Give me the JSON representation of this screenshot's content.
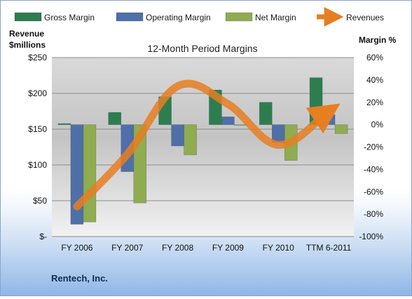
{
  "chart_data": {
    "type": "bar",
    "title": "12-Month Period Margins",
    "categories": [
      "FY 2006",
      "FY 2007",
      "FY 2008",
      "FY 2009",
      "FY 2010",
      "TTM 6-2011"
    ],
    "series": [
      {
        "name": "Gross Margin",
        "axis": "right",
        "kind": "bar",
        "color": "#2e7d4f",
        "values": [
          1,
          11,
          25,
          31,
          20,
          42
        ]
      },
      {
        "name": "Operating Margin",
        "axis": "right",
        "kind": "bar",
        "color": "#4f6fa8",
        "values": [
          -89,
          -42,
          -19,
          7,
          -16,
          9
        ]
      },
      {
        "name": "Net Margin",
        "axis": "right",
        "kind": "bar",
        "color": "#8fac50",
        "values": [
          -87,
          -70,
          -27,
          0,
          -32,
          -8
        ]
      },
      {
        "name": "Revenues",
        "axis": "left",
        "kind": "line",
        "color": "#e67e22",
        "values": [
          42,
          115,
          210,
          185,
          128,
          175
        ]
      }
    ],
    "left_axis": {
      "title_lines": [
        "Revenue",
        "$millions"
      ],
      "ticks": [
        {
          "value": 0,
          "label": "$-"
        },
        {
          "value": 50,
          "label": "$50"
        },
        {
          "value": 100,
          "label": "$100"
        },
        {
          "value": 150,
          "label": "$150"
        },
        {
          "value": 200,
          "label": "$200"
        },
        {
          "value": 250,
          "label": "$250"
        }
      ],
      "ylim": [
        0,
        250
      ]
    },
    "right_axis": {
      "title": "Margin %",
      "ticks": [
        {
          "value": -100,
          "label": "-100%"
        },
        {
          "value": -80,
          "label": "-80%"
        },
        {
          "value": -60,
          "label": "-60%"
        },
        {
          "value": -40,
          "label": "-40%"
        },
        {
          "value": -20,
          "label": "-20%"
        },
        {
          "value": 0,
          "label": "0%"
        },
        {
          "value": 20,
          "label": "20%"
        },
        {
          "value": 40,
          "label": "40%"
        },
        {
          "value": 60,
          "label": "60%"
        }
      ],
      "ylim": [
        -100,
        60
      ]
    },
    "legend_position": "top",
    "grid": true
  },
  "company": "Rentech, Inc."
}
